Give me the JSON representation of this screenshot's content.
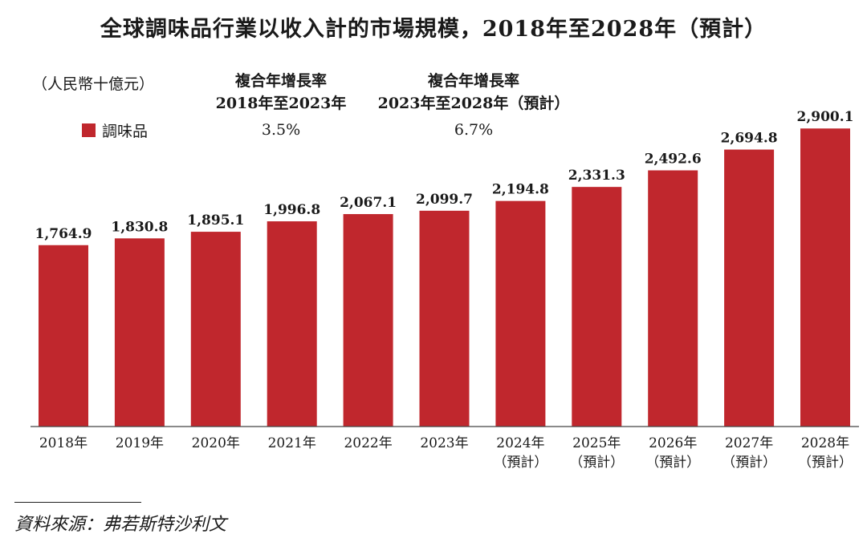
{
  "title": "全球調味品行業以收入計的市場規模，2018年至2028年（預計）",
  "unit": "（人民幣十億元）",
  "legend": {
    "label": "調味品",
    "color": "#c0272d"
  },
  "cagr": [
    {
      "header_line1": "複合年增長率",
      "header_line2": "2018年至2023年",
      "value": "3.5%"
    },
    {
      "header_line1": "複合年增長率",
      "header_line2": "2023年至2028年（預計）",
      "value": "6.7%"
    }
  ],
  "source": "資料來源：弗若斯特沙利文",
  "chart_data": {
    "type": "bar",
    "categories": [
      "2018年",
      "2019年",
      "2020年",
      "2021年",
      "2022年",
      "2023年",
      "2024年（預計）",
      "2025年（預計）",
      "2026年（預計）",
      "2027年（預計）",
      "2028年（預計）"
    ],
    "category_lines": [
      [
        "2018年"
      ],
      [
        "2019年"
      ],
      [
        "2020年"
      ],
      [
        "2021年"
      ],
      [
        "2022年"
      ],
      [
        "2023年"
      ],
      [
        "2024年",
        "（預計）"
      ],
      [
        "2025年",
        "（預計）"
      ],
      [
        "2026年",
        "（預計）"
      ],
      [
        "2027年",
        "（預計）"
      ],
      [
        "2028年",
        "（預計）"
      ]
    ],
    "series": [
      {
        "name": "調味品",
        "color": "#c0272d",
        "values": [
          1764.9,
          1830.8,
          1895.1,
          1996.8,
          2067.1,
          2099.7,
          2194.8,
          2331.3,
          2492.6,
          2694.8,
          2900.1
        ],
        "labels": [
          "1,764.9",
          "1,830.8",
          "1,895.1",
          "1,996.8",
          "2,067.1",
          "2,099.7",
          "2,194.8",
          "2,331.3",
          "2,492.6",
          "2,694.8",
          "2,900.1"
        ]
      }
    ],
    "ylim": [
      0,
      2980
    ],
    "grid": false,
    "legend_position": "top-left"
  }
}
